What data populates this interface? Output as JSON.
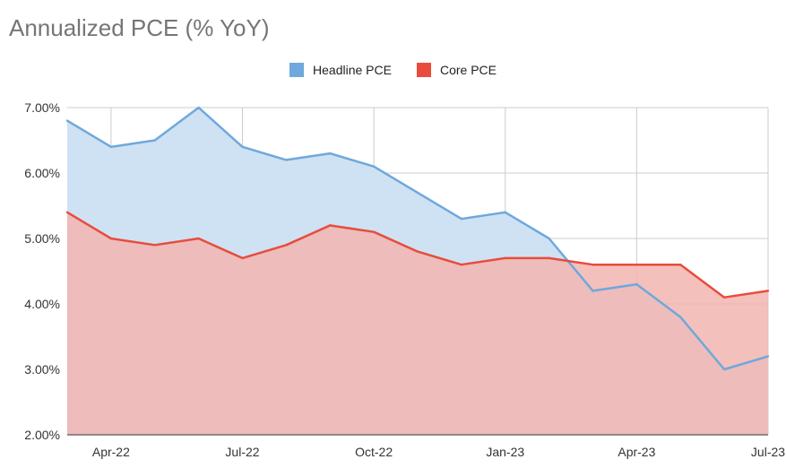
{
  "chart_data": {
    "type": "area",
    "title": "Annualized PCE (% YoY)",
    "xlabel": "",
    "ylabel": "",
    "x": [
      "Mar-22",
      "Apr-22",
      "May-22",
      "Jun-22",
      "Jul-22",
      "Aug-22",
      "Sep-22",
      "Oct-22",
      "Nov-22",
      "Dec-22",
      "Jan-23",
      "Feb-23",
      "Mar-23",
      "Apr-23",
      "May-23",
      "Jun-23",
      "Jul-23"
    ],
    "x_tick_labels": [
      "Apr-22",
      "Jul-22",
      "Oct-22",
      "Jan-23",
      "Apr-23",
      "Jul-23"
    ],
    "ylim": [
      2,
      7
    ],
    "y_tick_labels": [
      "2.00%",
      "3.00%",
      "4.00%",
      "5.00%",
      "6.00%",
      "7.00%"
    ],
    "grid": true,
    "legend_position": "top-center",
    "series": [
      {
        "name": "Headline PCE",
        "color": "#6fa8dc",
        "fill": "#cfe2f3",
        "values": [
          6.8,
          6.4,
          6.5,
          7.0,
          6.4,
          6.2,
          6.3,
          6.1,
          5.7,
          5.3,
          5.4,
          5.0,
          4.2,
          4.3,
          3.8,
          3.0,
          3.2
        ]
      },
      {
        "name": "Core PCE",
        "color": "#e84c3d",
        "fill": "#f2b5b0",
        "values": [
          5.4,
          5.0,
          4.9,
          5.0,
          4.7,
          4.9,
          5.2,
          5.1,
          4.8,
          4.6,
          4.7,
          4.7,
          4.6,
          4.6,
          4.6,
          4.1,
          4.2
        ]
      }
    ]
  }
}
